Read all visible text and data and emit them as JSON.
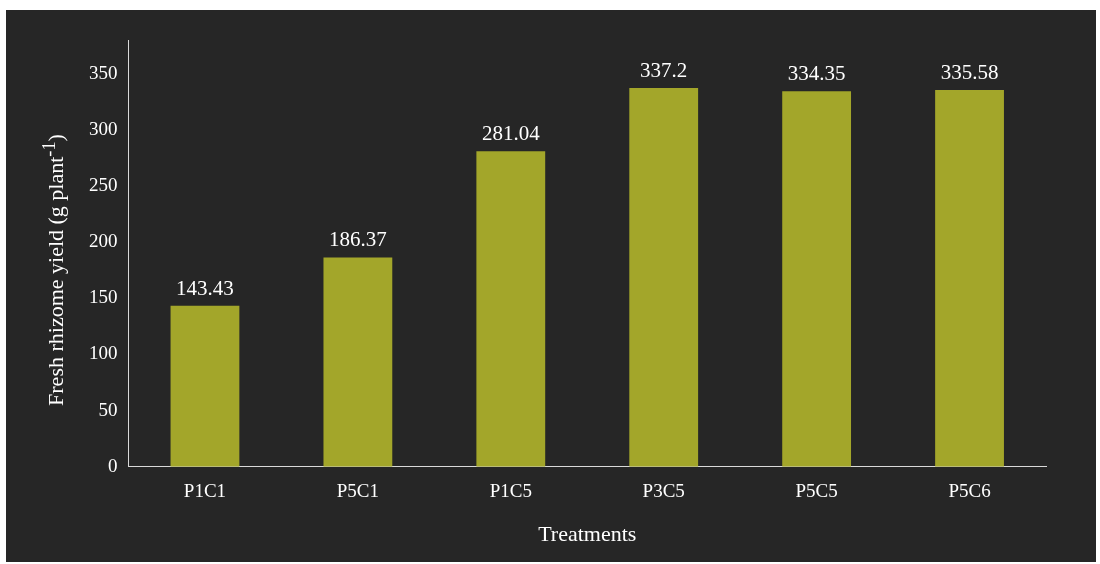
{
  "chart_data": {
    "type": "bar",
    "xlabel": "Treatments",
    "ylabel": "Fresh rhizome yield (g plant$^{-1}$)",
    "categories": [
      "P1C1",
      "P5C1",
      "P1C5",
      "P3C5",
      "P5C5",
      "P5C6"
    ],
    "values": [
      143.43,
      186.37,
      281.04,
      337.2,
      334.35,
      335.58
    ],
    "color": "#a3a62a",
    "ylim": [
      0,
      380
    ],
    "yticks": [
      0,
      50,
      100,
      150,
      200,
      250,
      300,
      350
    ],
    "grid": false,
    "data_labels": true,
    "legend": false
  }
}
